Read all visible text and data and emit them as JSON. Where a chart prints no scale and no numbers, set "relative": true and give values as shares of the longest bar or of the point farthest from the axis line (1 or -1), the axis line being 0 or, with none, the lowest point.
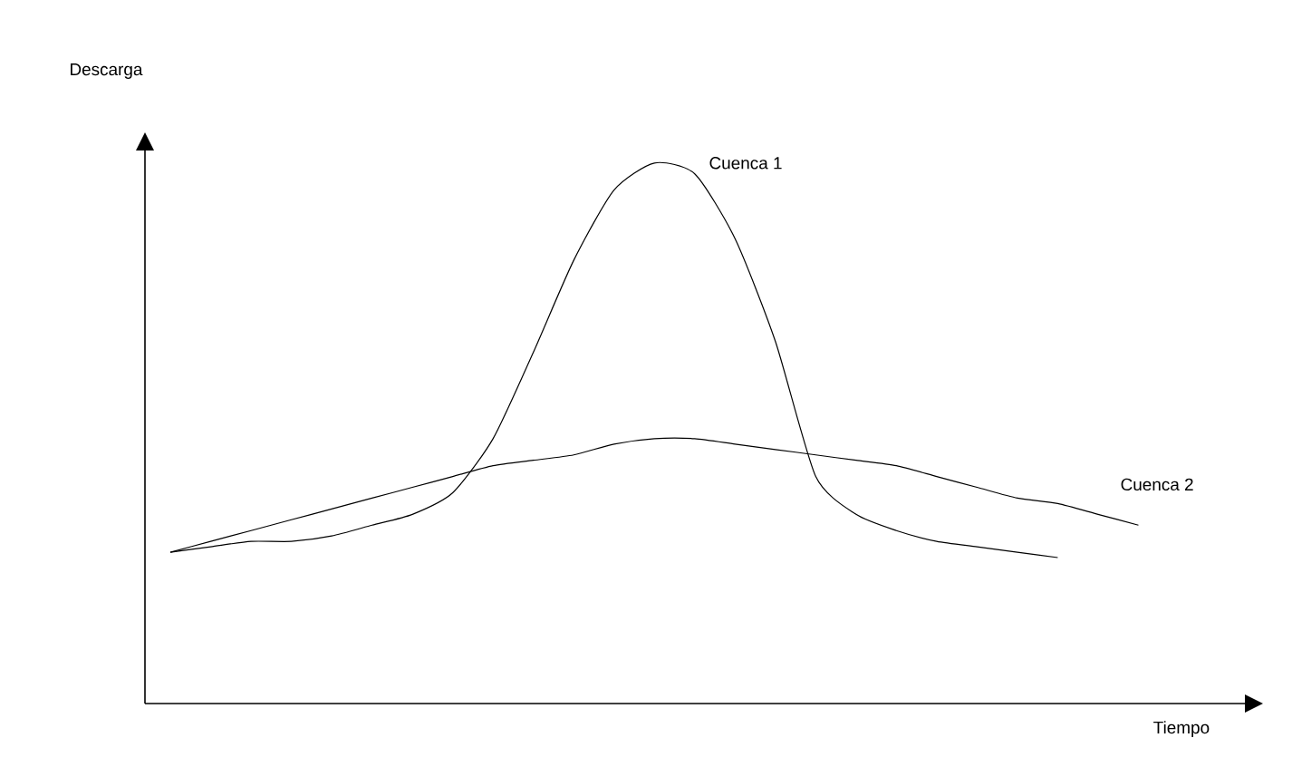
{
  "chart_data": {
    "type": "line",
    "relative": true,
    "xlabel": "Tiempo",
    "ylabel": "Descarga",
    "categories": [
      null,
      null,
      null,
      null,
      null,
      null,
      null,
      null,
      null,
      null,
      null,
      null,
      null,
      null,
      null,
      null,
      null,
      null,
      null,
      null,
      null,
      null,
      null,
      null,
      null
    ],
    "series": [
      {
        "name": "Cuenca 1",
        "color": "#000000",
        "values": [
          0.28,
          0.29,
          0.3,
          0.3,
          0.31,
          0.33,
          0.35,
          0.39,
          0.49,
          0.65,
          0.82,
          0.95,
          1.0,
          0.98,
          0.86,
          0.67,
          0.42,
          0.35,
          0.32,
          0.3,
          0.29,
          0.28,
          0.27,
          null,
          null
        ]
      },
      {
        "name": "Cuenca 2",
        "color": "#000000",
        "values": [
          0.28,
          0.3,
          0.32,
          0.34,
          0.36,
          0.38,
          0.4,
          0.42,
          0.44,
          0.45,
          0.46,
          0.48,
          0.49,
          0.49,
          0.48,
          0.47,
          0.46,
          0.45,
          0.44,
          0.42,
          0.4,
          0.38,
          0.37,
          0.35,
          0.33
        ]
      }
    ]
  }
}
